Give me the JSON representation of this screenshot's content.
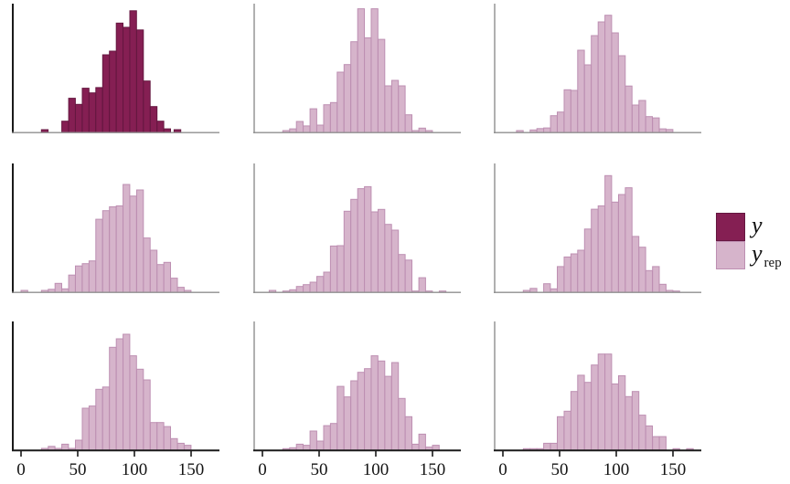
{
  "chart_data": {
    "type": "bar",
    "subtype": "histogram-facet-grid",
    "description": "Posterior predictive check: 3x3 grid of histograms; top-left is observed y (dark), others are replicated y_rep (light)",
    "title": "",
    "xlabel": "",
    "ylabel": "",
    "grid": {
      "rows": 3,
      "cols": 3
    },
    "x_ticks": [
      0,
      50,
      100,
      150
    ],
    "x_range": [
      -8,
      175
    ],
    "bin_width": 6,
    "heights_are": "fraction of panel height (y axis unlabeled, counts)",
    "x_ticks_shown_on": "bottom row only",
    "colors": {
      "y_fill": "#851f53",
      "y_stroke": "#651740",
      "yrep_fill": "#d6b4cb",
      "yrep_stroke": "#bd8fb2",
      "axis_strong": "#1a1a1a",
      "axis_light": "#8f8f8f",
      "tick_label": "#141414"
    },
    "legend": [
      {
        "label": "y",
        "series": "y"
      },
      {
        "label": "y_rep",
        "base": "y",
        "subscript": "rep",
        "series": "yrep"
      }
    ],
    "panels": [
      {
        "series": "y",
        "row": 0,
        "col": 0,
        "bars": [
          [
            18,
            0.021
          ],
          [
            36,
            0.087
          ],
          [
            42,
            0.265
          ],
          [
            48,
            0.218
          ],
          [
            54,
            0.343
          ],
          [
            60,
            0.307
          ],
          [
            66,
            0.348
          ],
          [
            72,
            0.603
          ],
          [
            78,
            0.631
          ],
          [
            84,
            0.849
          ],
          [
            90,
            0.816
          ],
          [
            96,
            0.945
          ],
          [
            102,
            0.796
          ],
          [
            108,
            0.399
          ],
          [
            114,
            0.201
          ],
          [
            120,
            0.087
          ],
          [
            126,
            0.028
          ],
          [
            135,
            0.021
          ]
        ]
      },
      {
        "series": "yrep",
        "row": 0,
        "col": 1,
        "bars": [
          [
            18,
            0.014
          ],
          [
            24,
            0.028
          ],
          [
            30,
            0.085
          ],
          [
            36,
            0.05
          ],
          [
            42,
            0.184
          ],
          [
            48,
            0.057
          ],
          [
            54,
            0.215
          ],
          [
            60,
            0.232
          ],
          [
            66,
            0.468
          ],
          [
            72,
            0.527
          ],
          [
            78,
            0.704
          ],
          [
            84,
            0.96
          ],
          [
            90,
            0.735
          ],
          [
            96,
            0.96
          ],
          [
            102,
            0.723
          ],
          [
            108,
            0.362
          ],
          [
            114,
            0.404
          ],
          [
            120,
            0.362
          ],
          [
            126,
            0.137
          ],
          [
            132,
            0.014
          ],
          [
            138,
            0.033
          ],
          [
            144,
            0.014
          ]
        ]
      },
      {
        "series": "yrep",
        "row": 0,
        "col": 2,
        "bars": [
          [
            12,
            0.014
          ],
          [
            24,
            0.019
          ],
          [
            30,
            0.03
          ],
          [
            36,
            0.035
          ],
          [
            42,
            0.13
          ],
          [
            48,
            0.158
          ],
          [
            54,
            0.331
          ],
          [
            60,
            0.326
          ],
          [
            66,
            0.638
          ],
          [
            72,
            0.525
          ],
          [
            78,
            0.752
          ],
          [
            84,
            0.858
          ],
          [
            90,
            0.91
          ],
          [
            96,
            0.773
          ],
          [
            102,
            0.596
          ],
          [
            108,
            0.36
          ],
          [
            114,
            0.213
          ],
          [
            120,
            0.248
          ],
          [
            126,
            0.123
          ],
          [
            132,
            0.113
          ],
          [
            138,
            0.028
          ],
          [
            144,
            0.023
          ]
        ]
      },
      {
        "series": "yrep",
        "row": 1,
        "col": 0,
        "bars": [
          [
            0,
            0.014
          ],
          [
            18,
            0.014
          ],
          [
            24,
            0.023
          ],
          [
            30,
            0.069
          ],
          [
            36,
            0.026
          ],
          [
            42,
            0.133
          ],
          [
            48,
            0.204
          ],
          [
            54,
            0.222
          ],
          [
            60,
            0.243
          ],
          [
            66,
            0.567
          ],
          [
            72,
            0.633
          ],
          [
            78,
            0.664
          ],
          [
            84,
            0.671
          ],
          [
            90,
            0.837
          ],
          [
            96,
            0.747
          ],
          [
            102,
            0.794
          ],
          [
            108,
            0.421
          ],
          [
            114,
            0.326
          ],
          [
            120,
            0.215
          ],
          [
            126,
            0.232
          ],
          [
            132,
            0.109
          ],
          [
            138,
            0.038
          ],
          [
            144,
            0.014
          ]
        ]
      },
      {
        "series": "yrep",
        "row": 1,
        "col": 1,
        "bars": [
          [
            6,
            0.014
          ],
          [
            18,
            0.009
          ],
          [
            24,
            0.019
          ],
          [
            30,
            0.045
          ],
          [
            36,
            0.059
          ],
          [
            42,
            0.078
          ],
          [
            48,
            0.123
          ],
          [
            54,
            0.156
          ],
          [
            60,
            0.359
          ],
          [
            66,
            0.362
          ],
          [
            72,
            0.629
          ],
          [
            78,
            0.721
          ],
          [
            84,
            0.804
          ],
          [
            90,
            0.82
          ],
          [
            96,
            0.624
          ],
          [
            102,
            0.643
          ],
          [
            108,
            0.527
          ],
          [
            114,
            0.482
          ],
          [
            120,
            0.293
          ],
          [
            126,
            0.25
          ],
          [
            132,
            0.009
          ],
          [
            138,
            0.113
          ],
          [
            144,
            0.009
          ],
          [
            156,
            0.009
          ]
        ]
      },
      {
        "series": "yrep",
        "row": 1,
        "col": 2,
        "bars": [
          [
            18,
            0.014
          ],
          [
            24,
            0.03
          ],
          [
            36,
            0.066
          ],
          [
            42,
            0.026
          ],
          [
            48,
            0.199
          ],
          [
            54,
            0.274
          ],
          [
            60,
            0.298
          ],
          [
            66,
            0.326
          ],
          [
            72,
            0.491
          ],
          [
            78,
            0.645
          ],
          [
            84,
            0.671
          ],
          [
            90,
            0.906
          ],
          [
            96,
            0.7
          ],
          [
            102,
            0.759
          ],
          [
            108,
            0.811
          ],
          [
            114,
            0.433
          ],
          [
            120,
            0.35
          ],
          [
            126,
            0.168
          ],
          [
            132,
            0.199
          ],
          [
            138,
            0.062
          ],
          [
            144,
            0.014
          ],
          [
            150,
            0.009
          ]
        ]
      },
      {
        "series": "yrep",
        "row": 2,
        "col": 0,
        "bars": [
          [
            18,
            0.014
          ],
          [
            24,
            0.03
          ],
          [
            30,
            0.014
          ],
          [
            36,
            0.047
          ],
          [
            42,
            0.014
          ],
          [
            48,
            0.078
          ],
          [
            54,
            0.326
          ],
          [
            60,
            0.343
          ],
          [
            66,
            0.473
          ],
          [
            72,
            0.491
          ],
          [
            78,
            0.799
          ],
          [
            84,
            0.865
          ],
          [
            90,
            0.901
          ],
          [
            96,
            0.733
          ],
          [
            102,
            0.629
          ],
          [
            108,
            0.546
          ],
          [
            114,
            0.215
          ],
          [
            120,
            0.215
          ],
          [
            126,
            0.184
          ],
          [
            132,
            0.09
          ],
          [
            138,
            0.054
          ],
          [
            144,
            0.038
          ]
        ]
      },
      {
        "series": "yrep",
        "row": 2,
        "col": 1,
        "bars": [
          [
            18,
            0.012
          ],
          [
            24,
            0.019
          ],
          [
            30,
            0.047
          ],
          [
            36,
            0.038
          ],
          [
            42,
            0.149
          ],
          [
            48,
            0.071
          ],
          [
            54,
            0.191
          ],
          [
            60,
            0.208
          ],
          [
            66,
            0.496
          ],
          [
            72,
            0.414
          ],
          [
            78,
            0.539
          ],
          [
            84,
            0.605
          ],
          [
            90,
            0.633
          ],
          [
            96,
            0.733
          ],
          [
            102,
            0.693
          ],
          [
            108,
            0.574
          ],
          [
            114,
            0.681
          ],
          [
            120,
            0.402
          ],
          [
            126,
            0.26
          ],
          [
            132,
            0.047
          ],
          [
            138,
            0.125
          ],
          [
            144,
            0.024
          ],
          [
            150,
            0.038
          ]
        ]
      },
      {
        "series": "yrep",
        "row": 2,
        "col": 2,
        "bars": [
          [
            18,
            0.012
          ],
          [
            24,
            0.012
          ],
          [
            30,
            0.012
          ],
          [
            36,
            0.054
          ],
          [
            42,
            0.054
          ],
          [
            48,
            0.26
          ],
          [
            54,
            0.303
          ],
          [
            60,
            0.456
          ],
          [
            66,
            0.582
          ],
          [
            72,
            0.527
          ],
          [
            78,
            0.662
          ],
          [
            84,
            0.747
          ],
          [
            90,
            0.747
          ],
          [
            96,
            0.515
          ],
          [
            102,
            0.579
          ],
          [
            108,
            0.416
          ],
          [
            114,
            0.456
          ],
          [
            120,
            0.272
          ],
          [
            126,
            0.189
          ],
          [
            132,
            0.106
          ],
          [
            138,
            0.106
          ],
          [
            150,
            0.012
          ],
          [
            162,
            0.012
          ]
        ]
      }
    ]
  }
}
